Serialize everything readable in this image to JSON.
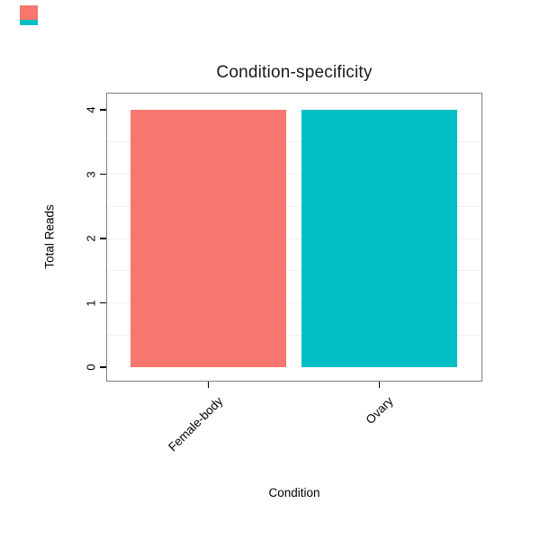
{
  "page": {
    "background": "#ffffff"
  },
  "artifacts": {
    "corner_red_swatch_color": "#F8766D",
    "corner_teal_swatch_color": "#00BFC4"
  },
  "chart_data": {
    "type": "bar",
    "title": "Condition-specificity",
    "xlabel": "Condition",
    "ylabel": "Total Reads",
    "categories": [
      "Female-body",
      "Ovary"
    ],
    "values": [
      4,
      4
    ],
    "series": [
      {
        "name": "Total Reads",
        "values": [
          4,
          4
        ]
      }
    ],
    "colors": [
      "#F8766D",
      "#00BFC4"
    ],
    "ylim": [
      0,
      4
    ],
    "yticks": [
      0,
      1,
      2,
      3,
      4
    ],
    "grid": "faint horizontal minor gridlines at 0.5 intervals",
    "legend": "none",
    "x_tick_label_rotation_deg": 45,
    "y_tick_label_rotation_deg": 90,
    "plot_border_color": "#7f7f7f"
  }
}
